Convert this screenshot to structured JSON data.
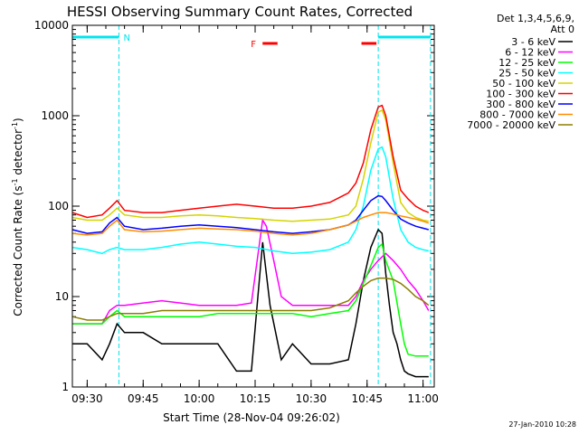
{
  "chart_data": {
    "type": "line",
    "title": "HESSI Observing Summary Count Rates, Corrected",
    "xlabel": "Start Time (28-Nov-04 09:26:02)",
    "ylabel": "Corrected Count Rate (s⁻¹ detector⁻¹)",
    "ylabel_base": "Corrected Count Rate (s",
    "ylabel_exp1": "-1",
    "ylabel_mid": " detector",
    "ylabel_exp2": "-1",
    "ylabel_end": ")",
    "y_scale": "log",
    "ylim": [
      1,
      10000
    ],
    "y_ticks": [
      "1",
      "10",
      "100",
      "1000",
      "10000"
    ],
    "xlim": [
      "09:26:02",
      "11:03:00"
    ],
    "x_ticks": [
      "09:30",
      "09:45",
      "10:00",
      "10:15",
      "10:30",
      "10:45",
      "11:00"
    ],
    "x_tick_minutes": [
      30,
      45,
      60,
      75,
      90,
      105,
      120
    ],
    "x_range_minutes": [
      26.03,
      123
    ],
    "grid": false,
    "legend": {
      "placement": "right",
      "header1": "Det 1,3,4,5,6,9,",
      "header2": "Att 0"
    },
    "footer_date": "27-Jan-2010 10:28",
    "annotations": {
      "night_label": "N",
      "flare_label": "F",
      "night_periods": [
        [
          26.03,
          38.5
        ],
        [
          108.0,
          122.0
        ]
      ],
      "flare_periods": [
        [
          77.0,
          81.0
        ],
        [
          103.5,
          107.5
        ]
      ]
    },
    "series": [
      {
        "name": "3 - 6 keV",
        "color": "#000000",
        "x": [
          26,
          30,
          34,
          36,
          38,
          40,
          45,
          50,
          55,
          60,
          65,
          70,
          74,
          77,
          79,
          82,
          85,
          90,
          95,
          100,
          102,
          104,
          106,
          108,
          109,
          110,
          111,
          112,
          113,
          114,
          115,
          116,
          118,
          120,
          121.5
        ],
        "y": [
          3,
          3,
          2,
          3,
          5,
          4,
          4,
          3,
          3,
          3,
          3,
          1.5,
          1.5,
          40,
          8,
          2,
          3,
          1.8,
          1.8,
          2,
          5,
          15,
          35,
          55,
          50,
          18,
          8,
          4,
          3,
          2,
          1.5,
          1.4,
          1.3,
          1.3,
          1.3
        ]
      },
      {
        "name": "6 - 12 keV",
        "color": "#ff00ff",
        "x": [
          26,
          30,
          34,
          36,
          38,
          40,
          45,
          50,
          55,
          60,
          65,
          70,
          74,
          77,
          78,
          80,
          82,
          85,
          90,
          95,
          100,
          102,
          104,
          106,
          108,
          110,
          112,
          114,
          116,
          118,
          120,
          121.5
        ],
        "y": [
          5,
          5,
          5,
          7,
          8,
          8,
          8.5,
          9,
          8.5,
          8,
          8,
          8,
          8.5,
          70,
          60,
          25,
          10,
          8,
          8,
          8,
          8,
          10,
          15,
          20,
          25,
          30,
          25,
          20,
          15,
          12,
          9,
          7
        ]
      },
      {
        "name": "12 - 25 keV",
        "color": "#00ff00",
        "x": [
          26,
          30,
          34,
          36,
          38,
          40,
          45,
          50,
          55,
          60,
          65,
          70,
          75,
          80,
          85,
          90,
          95,
          100,
          102,
          104,
          106,
          108,
          109,
          110,
          112,
          114,
          115,
          116,
          118,
          120,
          121.5
        ],
        "y": [
          5,
          5,
          5,
          6,
          7,
          6,
          6,
          6,
          6,
          6,
          6.5,
          6.5,
          6.5,
          6.5,
          6.5,
          6,
          6.5,
          7,
          9,
          14,
          22,
          35,
          38,
          25,
          15,
          5,
          3,
          2.3,
          2.2,
          2.2,
          2.2
        ]
      },
      {
        "name": "25 - 50 keV",
        "color": "#00ffff",
        "x": [
          26,
          30,
          34,
          36,
          38,
          40,
          45,
          50,
          55,
          60,
          65,
          70,
          75,
          80,
          85,
          90,
          95,
          100,
          102,
          104,
          106,
          108,
          109,
          110,
          112,
          114,
          116,
          118,
          120,
          121.5
        ],
        "y": [
          35,
          33,
          30,
          33,
          35,
          33,
          33,
          35,
          38,
          40,
          38,
          36,
          35,
          32,
          30,
          31,
          33,
          40,
          55,
          100,
          250,
          430,
          450,
          350,
          120,
          55,
          40,
          35,
          33,
          32
        ]
      },
      {
        "name": "50 - 100 keV",
        "color": "#d4d400",
        "x": [
          26,
          30,
          34,
          36,
          38,
          40,
          45,
          50,
          55,
          60,
          65,
          70,
          75,
          80,
          85,
          90,
          95,
          100,
          102,
          104,
          106,
          108,
          109,
          110,
          112,
          114,
          116,
          118,
          120,
          121.5
        ],
        "y": [
          75,
          70,
          70,
          80,
          95,
          80,
          75,
          75,
          78,
          80,
          78,
          75,
          73,
          70,
          68,
          70,
          72,
          80,
          100,
          200,
          500,
          1100,
          1150,
          900,
          300,
          110,
          85,
          75,
          70,
          68
        ]
      },
      {
        "name": "100 - 300 keV",
        "color": "#ff0000",
        "x": [
          26,
          30,
          34,
          36,
          38,
          40,
          45,
          50,
          55,
          60,
          65,
          70,
          75,
          80,
          85,
          90,
          95,
          100,
          102,
          104,
          106,
          108,
          109,
          110,
          112,
          114,
          116,
          118,
          120,
          121.5
        ],
        "y": [
          85,
          75,
          80,
          95,
          115,
          90,
          85,
          85,
          90,
          95,
          100,
          105,
          100,
          95,
          95,
          100,
          110,
          140,
          180,
          300,
          700,
          1250,
          1300,
          1000,
          350,
          150,
          120,
          100,
          90,
          85
        ]
      },
      {
        "name": "300 - 800 keV",
        "color": "#0000ff",
        "x": [
          26,
          30,
          34,
          36,
          38,
          40,
          45,
          50,
          55,
          60,
          65,
          70,
          75,
          80,
          85,
          90,
          95,
          100,
          102,
          104,
          106,
          108,
          109,
          110,
          112,
          114,
          116,
          118,
          120,
          121.5
        ],
        "y": [
          55,
          50,
          52,
          65,
          75,
          60,
          55,
          57,
          60,
          62,
          60,
          58,
          55,
          52,
          50,
          52,
          55,
          62,
          70,
          90,
          115,
          130,
          128,
          115,
          90,
          72,
          65,
          60,
          57,
          55
        ]
      },
      {
        "name": "800 - 7000 keV",
        "color": "#ff8c00",
        "x": [
          26,
          30,
          34,
          36,
          38,
          40,
          45,
          50,
          55,
          60,
          65,
          70,
          75,
          80,
          85,
          90,
          95,
          100,
          102,
          104,
          106,
          108,
          110,
          112,
          114,
          116,
          118,
          120,
          121.5
        ],
        "y": [
          50,
          48,
          50,
          60,
          70,
          55,
          52,
          53,
          55,
          57,
          56,
          55,
          53,
          50,
          48,
          50,
          55,
          62,
          68,
          75,
          80,
          85,
          85,
          82,
          78,
          75,
          72,
          68,
          65
        ]
      },
      {
        "name": "7000 - 20000 keV",
        "color": "#8b7d00",
        "x": [
          26,
          30,
          34,
          36,
          38,
          40,
          45,
          50,
          55,
          60,
          65,
          70,
          75,
          80,
          85,
          90,
          95,
          100,
          102,
          104,
          106,
          108,
          110,
          112,
          114,
          116,
          118,
          120,
          121.5
        ],
        "y": [
          6,
          5.5,
          5.5,
          6,
          6.5,
          6.5,
          6.5,
          7,
          7,
          7,
          7,
          7,
          7,
          7,
          7,
          7,
          7.5,
          9,
          11,
          13,
          15,
          16,
          16,
          15.5,
          14,
          12,
          10,
          9,
          8
        ]
      }
    ]
  }
}
